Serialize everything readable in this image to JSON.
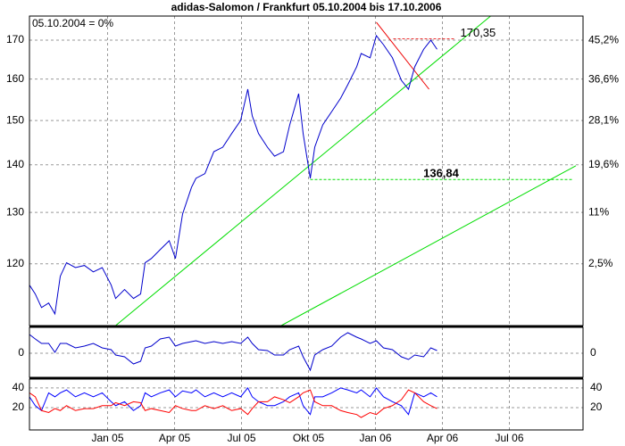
{
  "chart_data": [
    {
      "type": "line",
      "title": "adidas-Salomon / Frankfurt 05.10.2004  bis 17.10.2006",
      "note": "05.10.2004 = 0%",
      "x": [
        -3.5,
        -3.24,
        -2.96,
        -2.64,
        -2.36,
        -2.12,
        -1.84,
        -1.44,
        -1.04,
        -0.64,
        -0.24,
        0.16,
        0.36,
        0.76,
        1.16,
        1.48,
        1.68,
        1.96,
        2.36,
        2.76,
        3.04,
        3.36,
        3.76,
        3.96,
        4.36,
        4.76,
        5.16,
        5.56,
        5.96,
        6.28,
        6.48,
        6.76,
        7.16,
        7.48,
        7.88,
        8.16,
        8.56,
        8.76,
        9.08,
        9.28,
        9.64,
        10.04,
        10.44,
        10.76,
        11.16,
        11.36,
        11.76,
        12.04,
        12.36,
        12.76,
        13.16,
        13.48,
        13.76,
        14.16,
        14.48,
        14.76
      ],
      "xlim": [
        -3.5,
        21.3
      ],
      "ylim": [
        109,
        176.5
      ],
      "yticks": [
        120,
        130,
        140,
        150,
        160,
        170
      ],
      "log_y": true,
      "y2lim": [
        -6.9,
        50.8
      ],
      "y2log": true,
      "y2ticks": [
        {
          "value": 2.5,
          "label": "2,5%"
        },
        {
          "value": 11,
          "label": "11%"
        },
        {
          "value": 19.6,
          "label": "19,6%"
        },
        {
          "value": 28.1,
          "label": "28,1%"
        },
        {
          "value": 36.6,
          "label": "36,6%"
        },
        {
          "value": 45.2,
          "label": "45,2%"
        }
      ],
      "grid": true,
      "series": [
        {
          "color": "#0000cc",
          "values": [
            116.1,
            114.5,
            112.1,
            112.9,
            111.0,
            117.7,
            120.2,
            119.3,
            119.7,
            118.5,
            119.3,
            116.1,
            113.7,
            115.3,
            113.7,
            114.5,
            120.2,
            121.0,
            122.7,
            124.4,
            121.0,
            129.7,
            135.2,
            137.1,
            138.1,
            142.9,
            143.9,
            147.0,
            150.0,
            157.5,
            151.1,
            147.0,
            143.9,
            141.9,
            142.9,
            149.0,
            156.4,
            147.0,
            137.1,
            143.9,
            149.0,
            152.1,
            155.3,
            158.6,
            163.1,
            166.5,
            165.4,
            171.2,
            168.8,
            165.4,
            159.7,
            157.5,
            163.1,
            167.6,
            170.0,
            167.6
          ]
        }
      ],
      "trendlines": [
        {
          "color": "#00dd00",
          "x": [
            0.36,
            17.16
          ],
          "values": [
            109,
            176.5
          ]
        },
        {
          "color": "#00dd00",
          "x": [
            7.78,
            20.98
          ],
          "values": [
            109,
            139.8
          ]
        },
        {
          "color": "#ee0000",
          "x": [
            12.04,
            14.4
          ],
          "values": [
            174.8,
            157.5
          ]
        }
      ],
      "levels": [
        {
          "value": 170.35,
          "label": "170,35",
          "color": "#ee3333",
          "x": [
            12.8,
            15.6
          ]
        },
        {
          "value": 136.84,
          "label": "136,84",
          "color": "#00dd00",
          "x": [
            9.08,
            20.8
          ]
        }
      ]
    },
    {
      "type": "line",
      "x": [
        -3.5,
        -3.24,
        -2.96,
        -2.64,
        -2.36,
        -2.12,
        -1.84,
        -1.44,
        -1.04,
        -0.64,
        -0.24,
        0.16,
        0.36,
        0.76,
        1.16,
        1.48,
        1.68,
        1.96,
        2.36,
        2.76,
        3.04,
        3.36,
        3.76,
        3.96,
        4.36,
        4.76,
        5.16,
        5.56,
        5.96,
        6.28,
        6.48,
        6.76,
        7.16,
        7.48,
        7.88,
        8.16,
        8.56,
        8.76,
        9.08,
        9.28,
        9.64,
        10.04,
        10.44,
        10.76,
        11.16,
        11.36,
        11.76,
        12.04,
        12.36,
        12.76,
        13.16,
        13.48,
        13.76,
        14.16,
        14.48,
        14.76
      ],
      "xlim": [
        -3.5,
        21.3
      ],
      "ylim": [
        -27,
        29
      ],
      "yticks": [
        0
      ],
      "grid": true,
      "series": [
        {
          "color": "#0000cc",
          "values": [
            21,
            16,
            11,
            11,
            1,
            11,
            11,
            6,
            8,
            11,
            6,
            4,
            -2,
            -4,
            -12,
            -9,
            6,
            8,
            16,
            18,
            8,
            11,
            13,
            14,
            11,
            13,
            11,
            13,
            11,
            18,
            11,
            4,
            3,
            -2,
            -2,
            4,
            8,
            -4,
            -19,
            -2,
            4,
            8,
            18,
            23,
            18,
            16,
            11,
            14,
            6,
            4,
            -4,
            -7,
            -2,
            -4,
            6,
            3
          ]
        }
      ]
    },
    {
      "type": "line",
      "x": [
        -3.5,
        -3.24,
        -2.96,
        -2.64,
        -2.36,
        -2.12,
        -1.84,
        -1.44,
        -1.04,
        -0.64,
        -0.24,
        0.16,
        0.36,
        0.76,
        1.16,
        1.48,
        1.68,
        1.96,
        2.36,
        2.76,
        3.04,
        3.36,
        3.76,
        3.96,
        4.36,
        4.76,
        5.16,
        5.56,
        5.96,
        6.28,
        6.48,
        6.76,
        7.16,
        7.48,
        7.88,
        8.16,
        8.56,
        8.76,
        9.08,
        9.28,
        9.64,
        10.04,
        10.44,
        10.76,
        11.16,
        11.36,
        11.76,
        12.04,
        12.36,
        12.76,
        13.16,
        13.48,
        13.76,
        14.16,
        14.48,
        14.76
      ],
      "xlim": [
        -3.5,
        21.3
      ],
      "ylim": [
        -2.7,
        49
      ],
      "yticks": [
        20,
        40
      ],
      "grid": true,
      "xticks": [
        {
          "value": 0,
          "label": "Jan 05"
        },
        {
          "value": 3,
          "label": "Apr 05"
        },
        {
          "value": 6,
          "label": "Jul 05"
        },
        {
          "value": 9,
          "label": "Okt 05"
        },
        {
          "value": 12,
          "label": "Jan 06"
        },
        {
          "value": 15,
          "label": "Apr 06"
        },
        {
          "value": 18,
          "label": "Jul 06"
        }
      ],
      "series": [
        {
          "color": "#0000ff",
          "values": [
            31,
            22,
            17,
            35,
            31,
            35,
            38,
            31,
            35,
            31,
            35,
            26,
            22,
            26,
            17,
            22,
            35,
            31,
            35,
            38,
            31,
            37,
            35,
            38,
            31,
            35,
            31,
            35,
            31,
            40,
            31,
            26,
            22,
            22,
            26,
            31,
            35,
            22,
            13,
            31,
            31,
            35,
            40,
            38,
            35,
            38,
            31,
            40,
            31,
            26,
            22,
            13,
            35,
            31,
            35,
            31
          ]
        },
        {
          "color": "#ff0000",
          "values": [
            35,
            31,
            17,
            15,
            19,
            17,
            22,
            17,
            19,
            19,
            22,
            22,
            25,
            22,
            26,
            25,
            17,
            19,
            17,
            15,
            22,
            19,
            17,
            17,
            22,
            19,
            22,
            17,
            19,
            13,
            19,
            26,
            26,
            31,
            28,
            25,
            31,
            35,
            38,
            26,
            22,
            22,
            17,
            15,
            13,
            10,
            15,
            13,
            19,
            22,
            28,
            38,
            35,
            26,
            22,
            19
          ]
        }
      ]
    }
  ]
}
